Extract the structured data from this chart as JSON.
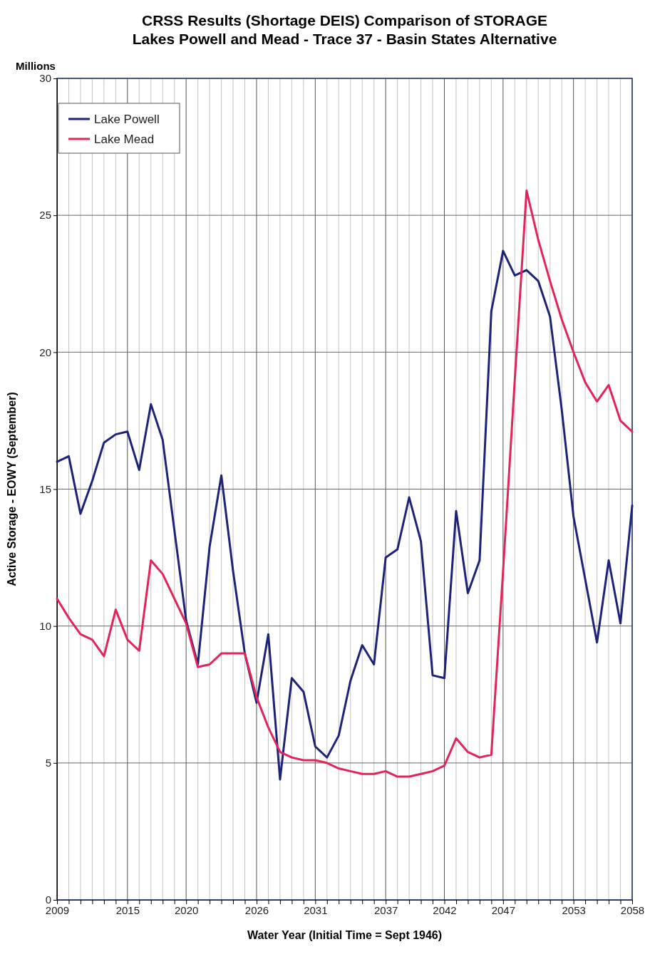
{
  "chart_data": {
    "type": "line",
    "title": "CRSS Results (Shortage DEIS) Comparison of STORAGE",
    "subtitle": "Lakes Powell and Mead - Trace 37 - Basin States Alternative",
    "xlabel": "Water Year (Initial Time = Sept 1946)",
    "ylabel": "Active Storage - EOWY (September)",
    "annotations": [
      "Millions"
    ],
    "x": [
      2009,
      2010,
      2011,
      2012,
      2013,
      2014,
      2015,
      2016,
      2017,
      2018,
      2019,
      2020,
      2021,
      2022,
      2023,
      2024,
      2025,
      2026,
      2027,
      2028,
      2029,
      2030,
      2031,
      2032,
      2033,
      2034,
      2035,
      2036,
      2037,
      2038,
      2039,
      2040,
      2041,
      2042,
      2043,
      2044,
      2045,
      2046,
      2047,
      2048,
      2049,
      2050,
      2051,
      2052,
      2053,
      2054,
      2055,
      2056,
      2057,
      2058
    ],
    "series": [
      {
        "name": "Lake Powell",
        "color": "#1c2378",
        "values": [
          16.0,
          16.2,
          14.1,
          15.3,
          16.7,
          17.0,
          17.1,
          15.7,
          18.1,
          16.8,
          13.5,
          10.2,
          8.6,
          12.9,
          15.5,
          12.0,
          9.0,
          7.2,
          9.7,
          4.4,
          8.1,
          7.6,
          5.6,
          5.2,
          6.0,
          8.0,
          9.3,
          8.6,
          12.5,
          12.8,
          14.7,
          13.1,
          8.2,
          8.1,
          14.2,
          11.2,
          12.4,
          21.5,
          23.7,
          22.8,
          23.0,
          22.6,
          21.3,
          17.9,
          14.0,
          11.7,
          9.4,
          12.4,
          10.1,
          14.4
        ]
      },
      {
        "name": "Lake Mead",
        "color": "#e3245a",
        "values": [
          11.0,
          10.3,
          9.7,
          9.5,
          8.9,
          10.6,
          9.5,
          9.1,
          12.4,
          11.9,
          11.0,
          10.1,
          8.5,
          8.6,
          9.0,
          9.0,
          9.0,
          7.4,
          6.3,
          5.4,
          5.2,
          5.1,
          5.1,
          5.0,
          4.8,
          4.7,
          4.6,
          4.6,
          4.7,
          4.5,
          4.5,
          4.6,
          4.7,
          4.9,
          5.9,
          5.4,
          5.2,
          5.3,
          12.0,
          19.0,
          25.9,
          24.1,
          22.6,
          21.2,
          20.0,
          18.9,
          18.2,
          18.8,
          17.5,
          17.1
        ]
      }
    ],
    "xlim": [
      2009,
      2058
    ],
    "xticks": [
      2009,
      {
        "value": 2010,
        "label": null
      },
      {
        "value": 2011,
        "label": null
      },
      {
        "value": 2012,
        "label": null
      },
      {
        "value": 2013,
        "label": null
      },
      {
        "value": 2014,
        "label": null
      },
      2015,
      {
        "value": 2016,
        "label": null
      },
      {
        "value": 2017,
        "label": null
      },
      {
        "value": 2018,
        "label": null
      },
      {
        "value": 2019,
        "label": null
      },
      2020,
      {
        "value": 2021,
        "label": null
      },
      {
        "value": 2022,
        "label": null
      },
      {
        "value": 2023,
        "label": null
      },
      {
        "value": 2024,
        "label": null
      },
      {
        "value": 2025,
        "label": null
      },
      2026,
      {
        "value": 2027,
        "label": null
      },
      {
        "value": 2028,
        "label": null
      },
      {
        "value": 2029,
        "label": null
      },
      {
        "value": 2030,
        "label": null
      },
      2031,
      {
        "value": 2032,
        "label": null
      },
      {
        "value": 2033,
        "label": null
      },
      {
        "value": 2034,
        "label": null
      },
      {
        "value": 2035,
        "label": null
      },
      {
        "value": 2036,
        "label": null
      },
      2037,
      {
        "value": 2038,
        "label": null
      },
      {
        "value": 2039,
        "label": null
      },
      {
        "value": 2040,
        "label": null
      },
      {
        "value": 2041,
        "label": null
      },
      2042,
      {
        "value": 2043,
        "label": null
      },
      {
        "value": 2044,
        "label": null
      },
      {
        "value": 2045,
        "label": null
      },
      {
        "value": 2046,
        "label": null
      },
      2047,
      {
        "value": 2048,
        "label": null
      },
      {
        "value": 2049,
        "label": null
      },
      {
        "value": 2050,
        "label": null
      },
      {
        "value": 2051,
        "label": null
      },
      {
        "value": 2052,
        "label": null
      },
      2053,
      {
        "value": 2054,
        "label": null
      },
      {
        "value": 2055,
        "label": null
      },
      {
        "value": 2056,
        "label": null
      },
      {
        "value": 2057,
        "label": null
      },
      2058
    ],
    "ylim": [
      0,
      30
    ],
    "yticks": [
      0,
      5,
      10,
      15,
      20,
      25,
      30
    ],
    "grid": true,
    "legend": "top left",
    "line_style": "solid",
    "marker": "none"
  }
}
